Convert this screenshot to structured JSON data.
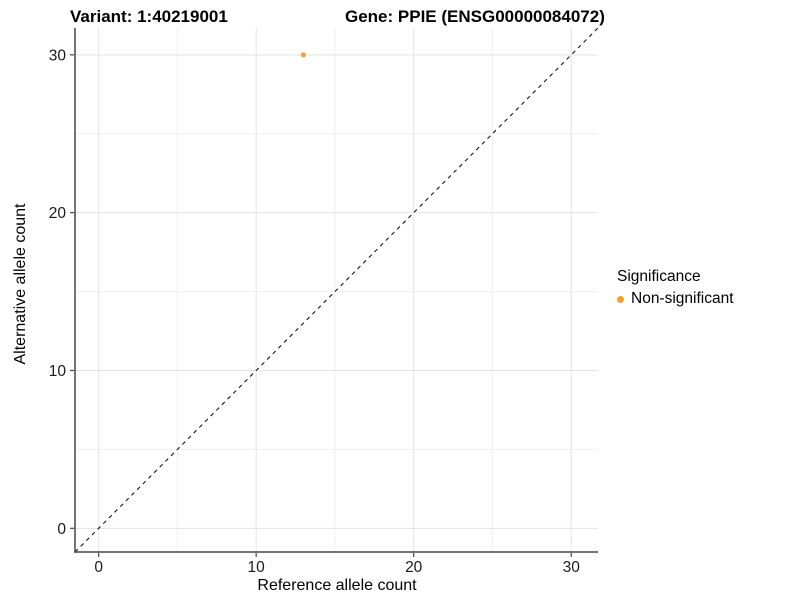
{
  "titles": {
    "variant": "Variant: 1:40219001",
    "gene": "Gene: PPIE (ENSG00000084072)"
  },
  "legend": {
    "title": "Significance",
    "items": [
      {
        "label": "Non-significant",
        "color": "#F9A02B"
      }
    ]
  },
  "colors": {
    "point": "#F9A02B",
    "axis_line": "#464646",
    "tick_mark": "#464646",
    "tick_label": "#1a1a1a",
    "grid_major": "#e3e3e3",
    "grid_minor": "#efefef",
    "identity_line": "#000000",
    "background": "#ffffff"
  },
  "chart_data": {
    "type": "scatter",
    "title": "Variant: 1:40219001",
    "subtitle": "Gene: PPIE (ENSG00000084072)",
    "xlabel": "Reference allele count",
    "ylabel": "Alternative allele count",
    "points": [
      {
        "x": 13,
        "y": 30,
        "series": "Non-significant"
      }
    ],
    "series": [
      {
        "name": "Non-significant",
        "color": "#F9A02B"
      }
    ],
    "reference_line": {
      "kind": "identity",
      "slope": 1,
      "intercept": 0,
      "style": "dashed"
    },
    "xlim": [
      -1.5,
      31.7
    ],
    "ylim": [
      -1.5,
      31.7
    ],
    "x_ticks": [
      0,
      10,
      20,
      30
    ],
    "y_ticks": [
      0,
      10,
      20,
      30
    ],
    "x_minor_ticks": [
      5,
      15,
      25
    ],
    "y_minor_ticks": [
      5,
      15,
      25
    ],
    "grid": true,
    "legend_position": "right"
  }
}
